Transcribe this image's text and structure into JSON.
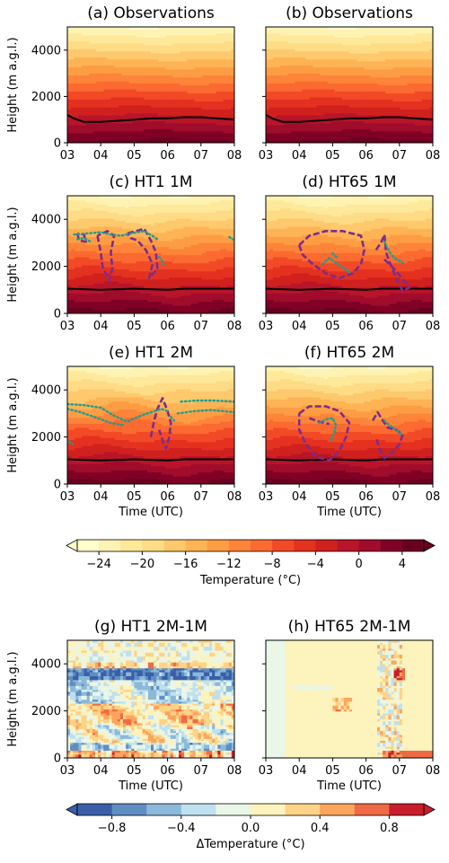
{
  "chart_data": {
    "type": "heatmap",
    "panels": [
      {
        "id": "a",
        "title": "(a)  Observations",
        "field": "temperature"
      },
      {
        "id": "b",
        "title": "(b)  Observations",
        "field": "temperature"
      },
      {
        "id": "c",
        "title": "(c)      HT1  1M",
        "field": "temperature",
        "clouds": "ht1_1m"
      },
      {
        "id": "d",
        "title": "(d)    HT65  1M",
        "field": "temperature",
        "clouds": "ht65_1m"
      },
      {
        "id": "e",
        "title": "(e)      HT1  2M",
        "field": "temperature",
        "clouds": "ht1_2m"
      },
      {
        "id": "f",
        "title": "(f)    HT65  2M",
        "field": "temperature",
        "clouds": "ht65_2m"
      },
      {
        "id": "g",
        "title": "(g)    HT1  2M-1M",
        "field": "delta_temperature",
        "pattern": "ht1"
      },
      {
        "id": "h",
        "title": "(h)    HT65  2M-1M",
        "field": "delta_temperature",
        "pattern": "ht65"
      }
    ],
    "x_axis": {
      "label": "Time (UTC)",
      "ticks": [
        "03",
        "04",
        "05",
        "06",
        "07",
        "08"
      ],
      "range": [
        3,
        8
      ]
    },
    "y_axis": {
      "label": "Height (m a.g.l.)",
      "ticks": [
        "0",
        "2000",
        "4000"
      ],
      "range": [
        0,
        5000
      ]
    },
    "freezing_level_m": {
      "observations": [
        [
          3.0,
          1200
        ],
        [
          3.2,
          1050
        ],
        [
          3.5,
          900
        ],
        [
          4.0,
          900
        ],
        [
          4.5,
          950
        ],
        [
          5.0,
          1000
        ],
        [
          5.5,
          1050
        ],
        [
          6.0,
          1050
        ],
        [
          6.5,
          1100
        ],
        [
          7.0,
          1100
        ],
        [
          7.5,
          1050
        ],
        [
          8.0,
          1000
        ]
      ],
      "model": [
        [
          3.0,
          1050
        ],
        [
          4.0,
          1000
        ],
        [
          5.0,
          1050
        ],
        [
          6.0,
          1000
        ],
        [
          6.5,
          1050
        ],
        [
          7.0,
          1050
        ],
        [
          8.0,
          1050
        ]
      ]
    },
    "temperature_colorbar": {
      "label": "Temperature (°C)",
      "ticks": [
        "−24",
        "−20",
        "−16",
        "−12",
        "−8",
        "−4",
        "0",
        "4"
      ],
      "min": -26,
      "max": 6,
      "colors": [
        "#ffffcc",
        "#fff3b3",
        "#fee89a",
        "#fedb85",
        "#fec86c",
        "#feb354",
        "#fd9d43",
        "#fd8438",
        "#fb6a30",
        "#f24a26",
        "#e43120",
        "#d0211f",
        "#b8142a",
        "#a00c2b",
        "#800026",
        "#6a0020"
      ]
    },
    "delta_colorbar": {
      "label": "ΔTemperature (°C)",
      "ticks": [
        "−0.8",
        "−0.4",
        "0.0",
        "0.4",
        "0.8"
      ],
      "min": -1.0,
      "max": 1.0,
      "colors": [
        "#3a5fa8",
        "#5f8ec2",
        "#8bb9d9",
        "#bfe0ee",
        "#e9f6e8",
        "#fdf3bc",
        "#fdd387",
        "#fca55e",
        "#ee6a44",
        "#c81d2a"
      ]
    }
  }
}
